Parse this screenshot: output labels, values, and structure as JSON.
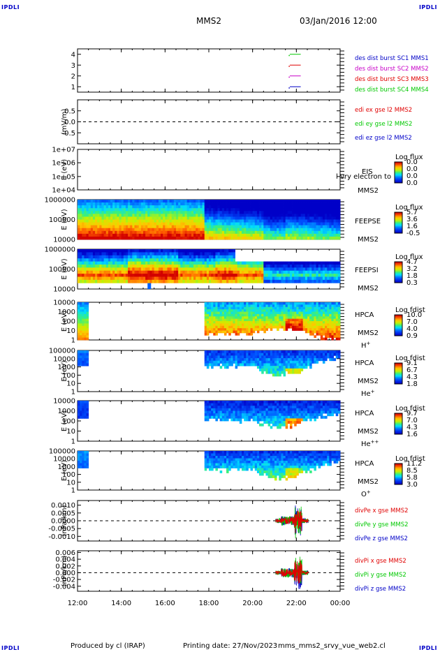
{
  "header": {
    "corner_label": "IPDLI",
    "spacecraft": "MMS2",
    "datetime": "03/Jan/2016 12:00"
  },
  "footer": {
    "producer": "Produced by cl (IRAP)",
    "printing": "Printing date: 27/Nov/2023",
    "filename": "mms_mms2_srvy_vue_web2.cl"
  },
  "colors": {
    "mms1": "#0000c8",
    "mms2": "#c800c8",
    "mms3": "#e00000",
    "mms4": "#00c800",
    "x": "#e00000",
    "y": "#00c800",
    "z": "#0000c8"
  },
  "chart_data": [
    {
      "id": "burst",
      "type": "line",
      "ylim": [
        0.5,
        4.5
      ],
      "yticks": [
        "4",
        "3",
        "2",
        "1"
      ],
      "ytick_values": [
        4,
        3,
        2,
        1
      ],
      "segments": [
        {
          "y": 4,
          "x": [
            21.65,
            21.7,
            22.2
          ]
        },
        {
          "y": 3,
          "x": [
            21.65,
            21.7,
            22.2
          ]
        },
        {
          "y": 2,
          "x": [
            21.65,
            21.7,
            22.2
          ]
        },
        {
          "y": 1,
          "x": [
            21.65,
            21.7,
            22.2
          ]
        }
      ],
      "legend": [
        "des dist burst SC1 MMS1",
        "des dist burst SC2 MMS2",
        "des dist burst SC3 MMS3",
        "des dist burst SC4 MMS4"
      ]
    },
    {
      "id": "edi",
      "type": "line",
      "ylabel": "(mV/m)",
      "ylim": [
        -1,
        1
      ],
      "yticks": [
        "0.5",
        "0.0",
        "-0.5"
      ],
      "ytick_values": [
        0.5,
        0,
        -0.5
      ],
      "legend": [
        "edi ex gse l2 MMS2",
        "edi ey gse l2 MMS2",
        "edi ez gse l2 MMS2"
      ]
    },
    {
      "id": "eis",
      "type": "heatmap",
      "ylabel": "E (eV)",
      "yticks": [
        "1e+07",
        "1e+06",
        "1e+05",
        "1e+04"
      ],
      "ytick_values": [
        1,
        0.67,
        0.33,
        0
      ],
      "instrument": "EIS",
      "species": "H",
      "sub": "l vry electron to",
      "probe": "MMS2",
      "colorbar_title": "Log flux",
      "colorbar_ticks": [
        "0.0",
        "0.0",
        "0.0",
        "0.0"
      ]
    },
    {
      "id": "feepse",
      "type": "heatmap",
      "ylabel": "E (eV)",
      "yticks": [
        "1000000",
        "100000",
        "10000"
      ],
      "ytick_values": [
        1,
        0.5,
        0
      ],
      "instrument": "FEEPSE",
      "probe": "MMS2",
      "colorbar_title": "Log flux",
      "colorbar_ticks": [
        "5.7",
        "3.6",
        "1.6",
        "-0.5"
      ]
    },
    {
      "id": "feepsi",
      "type": "heatmap",
      "ylabel": "E (eV)",
      "yticks": [
        "1000000",
        "100000",
        "10000"
      ],
      "ytick_values": [
        1,
        0.5,
        0
      ],
      "instrument": "FEEPSI",
      "probe": "MMS2",
      "colorbar_title": "Log flux",
      "colorbar_ticks": [
        "4.7",
        "3.2",
        "1.8",
        "0.3"
      ]
    },
    {
      "id": "hpca_h",
      "type": "heatmap",
      "ylabel": "E (eV)",
      "yticks": [
        "10000",
        "1000",
        "100",
        "10",
        "1"
      ],
      "ytick_values": [
        1,
        0.75,
        0.5,
        0.25,
        0
      ],
      "instrument": "HPCA",
      "probe": "MMS2",
      "species": "H",
      "species_sup": "+",
      "colorbar_title": "Log fdist",
      "colorbar_ticks": [
        "10.0",
        "7.0",
        "4.0",
        "0.9"
      ]
    },
    {
      "id": "hpca_he",
      "type": "heatmap",
      "ylabel": "E (eV)",
      "yticks": [
        "100000",
        "10000",
        "1000",
        "100",
        "10",
        "1"
      ],
      "ytick_values": [
        1,
        0.8,
        0.6,
        0.4,
        0.2,
        0
      ],
      "instrument": "HPCA",
      "probe": "MMS2",
      "species": "He",
      "species_sup": "+",
      "colorbar_title": "Log fdist",
      "colorbar_ticks": [
        "9.1",
        "6.7",
        "4.3",
        "1.8"
      ]
    },
    {
      "id": "hpca_hepp",
      "type": "heatmap",
      "ylabel": "E (eV)",
      "yticks": [
        "10000",
        "1000",
        "100",
        "10",
        "1"
      ],
      "ytick_values": [
        1,
        0.75,
        0.5,
        0.25,
        0
      ],
      "instrument": "HPCA",
      "probe": "MMS2",
      "species": "He",
      "species_sup": "++",
      "colorbar_title": "Log fdist",
      "colorbar_ticks": [
        "9.7",
        "7.0",
        "4.3",
        "1.6"
      ]
    },
    {
      "id": "hpca_o",
      "type": "heatmap",
      "ylabel": "E (eV)",
      "yticks": [
        "100000",
        "10000",
        "1000",
        "100",
        "10",
        "1"
      ],
      "ytick_values": [
        1,
        0.8,
        0.6,
        0.4,
        0.2,
        0
      ],
      "instrument": "HPCA",
      "probe": "MMS2",
      "species": "O",
      "species_sup": "+",
      "colorbar_title": "Log fdist",
      "colorbar_ticks": [
        "11.2",
        "8.5",
        "5.8",
        "3.0"
      ]
    },
    {
      "id": "divpe",
      "type": "line",
      "ylabel": "(nPa/km)",
      "ylim": [
        -0.0013,
        0.0013
      ],
      "yticks": [
        "0.0010",
        "0.0005",
        "0.0000",
        "-0.0005",
        "-0.0010"
      ],
      "ytick_values": [
        0.001,
        0.0005,
        0,
        -0.0005,
        -0.001
      ],
      "legend": [
        "divPe x gse MMS2",
        "divPe y gse MMS2",
        "divPe z gse MMS2"
      ]
    },
    {
      "id": "divpi",
      "type": "line",
      "ylabel": "(nPa/km)",
      "ylim": [
        -0.0055,
        0.0065
      ],
      "yticks": [
        "0.006",
        "0.004",
        "0.002",
        "0.000",
        "-0.002",
        "-0.004"
      ],
      "ytick_values": [
        0.006,
        0.004,
        0.002,
        0,
        -0.002,
        -0.004
      ],
      "legend": [
        "divPi x gse MMS2",
        "divPi y gse MMS2",
        "divPi z gse MMS2"
      ]
    }
  ],
  "time_axis": {
    "labels": [
      "12:00",
      "14:00",
      "16:00",
      "18:00",
      "20:00",
      "22:00",
      "00:00"
    ],
    "hours": [
      12,
      14,
      16,
      18,
      20,
      22,
      24
    ]
  }
}
